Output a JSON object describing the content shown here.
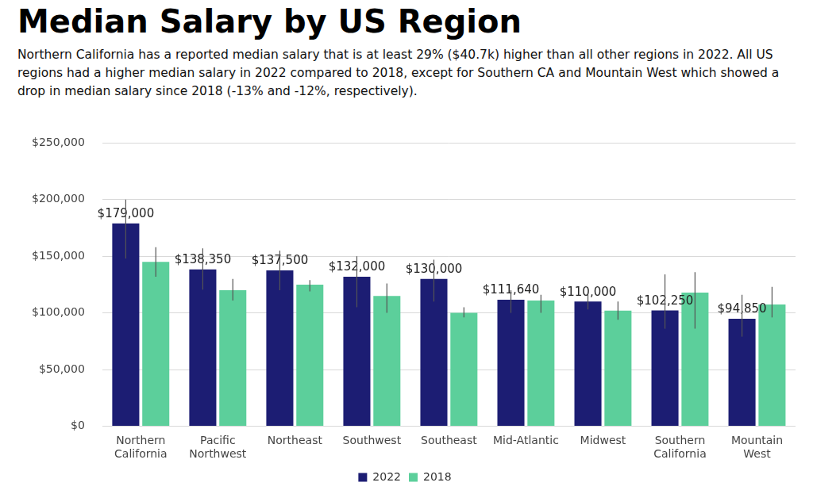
{
  "chart_data": {
    "type": "bar",
    "title": "Median Salary by US Region",
    "subtitle": "Northern California has a reported median salary that is at least 29% ($40.7k) higher than all other regions in 2022. All US regions had a higher median salary in 2022 compared to 2018, except for Southern CA and Mountain West which showed a drop in median salary since 2018 (-13% and -12%, respectively).",
    "categories": [
      "Northern California",
      "Pacific Northwest",
      "Northeast",
      "Southwest",
      "Southeast",
      "Mid-Atlantic",
      "Midwest",
      "Southern California",
      "Mountain West"
    ],
    "series": [
      {
        "name": "2022",
        "color": "#1c1d73",
        "values": [
          179000,
          138350,
          137500,
          132000,
          130000,
          111640,
          110000,
          102250,
          94850
        ],
        "value_labels": [
          "$179,000",
          "$138,350",
          "$137,500",
          "$132,000",
          "$130,000",
          "$111,640",
          "$110,000",
          "$102,250",
          "$94,850"
        ],
        "error_low": [
          148000,
          120500,
          120000,
          105000,
          110000,
          100000,
          103000,
          86000,
          79000
        ],
        "error_high": [
          200000,
          157000,
          155000,
          150000,
          147000,
          120000,
          117000,
          134000,
          116000
        ]
      },
      {
        "name": "2018",
        "color": "#5ccf9b",
        "values": [
          145000,
          120000,
          125000,
          115000,
          100000,
          111000,
          102000,
          118000,
          107500
        ],
        "error_low": [
          132000,
          111000,
          119000,
          100000,
          96000,
          100000,
          94000,
          86000,
          96000
        ],
        "error_high": [
          158000,
          130000,
          129000,
          126000,
          105000,
          116000,
          110000,
          136000,
          123000
        ]
      }
    ],
    "ylim": [
      0,
      250000
    ],
    "yticks": [
      {
        "value": 0,
        "label": "$0"
      },
      {
        "value": 50000,
        "label": "$50,000"
      },
      {
        "value": 100000,
        "label": "$100,000"
      },
      {
        "value": 150000,
        "label": "$150,000"
      },
      {
        "value": 200000,
        "label": "$200,000"
      },
      {
        "value": 250000,
        "label": "$250,000"
      }
    ],
    "grid": true,
    "legend": "bottom",
    "data_labels": true
  }
}
